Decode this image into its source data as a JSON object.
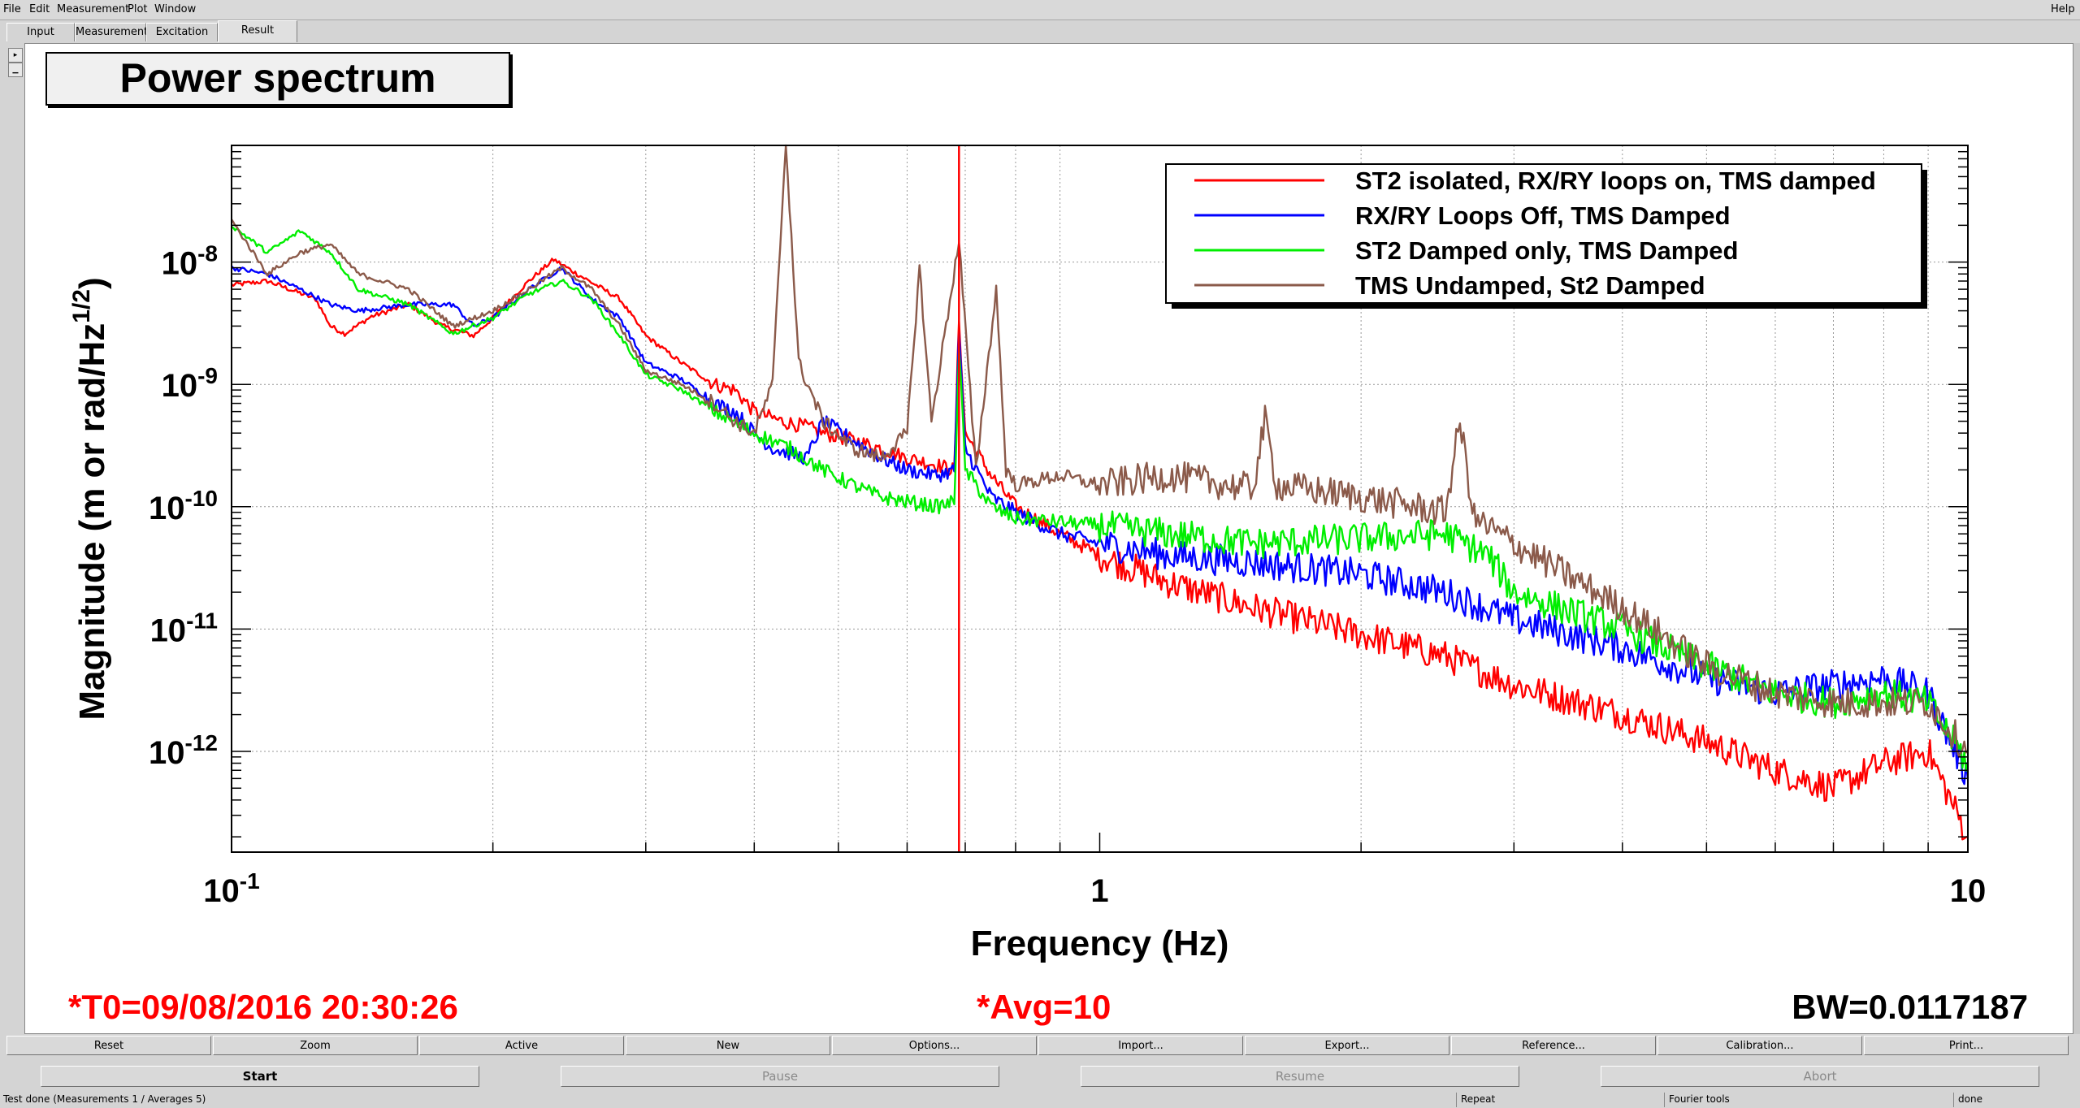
{
  "menu": [
    "File",
    "Edit",
    "Measurement",
    "Plot",
    "Window"
  ],
  "help": "Help",
  "tabs": [
    "Input",
    "Measurement",
    "Excitation",
    "Result"
  ],
  "plot_title": "Power spectrum",
  "footer": {
    "t0": "*T0=09/08/2016 20:30:26",
    "avg": "*Avg=10",
    "bw": "BW=0.0117187"
  },
  "toolbar": [
    "Reset",
    "Zoom",
    "Active",
    "New",
    "Options...",
    "Import...",
    "Export...",
    "Reference...",
    "Calibration...",
    "Print..."
  ],
  "controls": [
    "Start",
    "Pause",
    "Resume",
    "Abort"
  ],
  "status": {
    "message": "Test done (Measurements 1 / Averages 5)",
    "repeat": "Repeat",
    "tool": "Fourier tools",
    "state": "done"
  },
  "colors": {
    "red": "#ff0000",
    "blue": "#0000ff",
    "green": "#00ee00",
    "brown": "#8b5a4a"
  },
  "chart_data": {
    "type": "line",
    "title": "Power spectrum",
    "xlabel": "Frequency (Hz)",
    "ylabel": "Magnitude (m or rad/Hz^1/2)",
    "x_scale": "log",
    "y_scale": "log",
    "xlim": [
      0.1,
      10
    ],
    "ylim": [
      1.5e-13,
      9e-08
    ],
    "x_ticks": [
      {
        "value": 0.1,
        "base": "10",
        "exp": "-1"
      },
      {
        "value": 1,
        "base": "1",
        "exp": ""
      },
      {
        "value": 10,
        "base": "10",
        "exp": ""
      }
    ],
    "y_ticks": [
      {
        "value": 1e-08,
        "exp": "-8"
      },
      {
        "value": 1e-09,
        "exp": "-9"
      },
      {
        "value": 1e-10,
        "exp": "-10"
      },
      {
        "value": 1e-11,
        "exp": "-11"
      },
      {
        "value": 1e-12,
        "exp": "-12"
      }
    ],
    "grid": true,
    "legend_position": "top-right",
    "cursor_frequency": 0.6885,
    "series": [
      {
        "name": "ST2 isolated, RX/RY loops on, TMS damped",
        "color": "#ff0000",
        "points": [
          [
            0.1,
            6.5e-09
          ],
          [
            0.11,
            7e-09
          ],
          [
            0.125,
            5e-09
          ],
          [
            0.13,
            3e-09
          ],
          [
            0.135,
            2.6e-09
          ],
          [
            0.145,
            3.6e-09
          ],
          [
            0.16,
            4.5e-09
          ],
          [
            0.175,
            3e-09
          ],
          [
            0.19,
            2.5e-09
          ],
          [
            0.2,
            3.5e-09
          ],
          [
            0.22,
            7e-09
          ],
          [
            0.235,
            1.05e-08
          ],
          [
            0.25,
            8e-09
          ],
          [
            0.28,
            5e-09
          ],
          [
            0.3,
            2.5e-09
          ],
          [
            0.33,
            1.5e-09
          ],
          [
            0.36,
            1e-09
          ],
          [
            0.38,
            9e-10
          ],
          [
            0.4,
            6e-10
          ],
          [
            0.43,
            5e-10
          ],
          [
            0.46,
            4.5e-10
          ],
          [
            0.48,
            4e-10
          ],
          [
            0.52,
            3.5e-10
          ],
          [
            0.56,
            3e-10
          ],
          [
            0.6,
            2.5e-10
          ],
          [
            0.65,
            2.2e-10
          ],
          [
            0.68,
            2e-10
          ],
          [
            0.6885,
            3.5e-09
          ],
          [
            0.7,
            4e-10
          ],
          [
            0.75,
            1.8e-10
          ],
          [
            0.8,
            1e-10
          ],
          [
            0.9,
            6e-11
          ],
          [
            1,
            4e-11
          ],
          [
            1.2,
            2.4e-11
          ],
          [
            1.5,
            1.5e-11
          ],
          [
            2,
            9e-12
          ],
          [
            2.5,
            6e-12
          ],
          [
            3,
            3.5e-12
          ],
          [
            4,
            2e-12
          ],
          [
            5,
            1.2e-12
          ],
          [
            6,
            7e-13
          ],
          [
            7,
            5e-13
          ],
          [
            8,
            8e-13
          ],
          [
            9,
            1e-12
          ],
          [
            10,
            2e-13
          ]
        ]
      },
      {
        "name": "RX/RY Loops Off, TMS Damped",
        "color": "#0000ff",
        "points": [
          [
            0.1,
            9e-09
          ],
          [
            0.11,
            8e-09
          ],
          [
            0.12,
            6e-09
          ],
          [
            0.13,
            4.5e-09
          ],
          [
            0.14,
            4e-09
          ],
          [
            0.16,
            4.5e-09
          ],
          [
            0.18,
            4.5e-09
          ],
          [
            0.19,
            3e-09
          ],
          [
            0.2,
            3.5e-09
          ],
          [
            0.22,
            6e-09
          ],
          [
            0.24,
            9e-09
          ],
          [
            0.26,
            5e-09
          ],
          [
            0.28,
            3.5e-09
          ],
          [
            0.3,
            1.5e-09
          ],
          [
            0.33,
            1.1e-09
          ],
          [
            0.36,
            7e-10
          ],
          [
            0.38,
            6e-10
          ],
          [
            0.4,
            4e-10
          ],
          [
            0.42,
            3e-10
          ],
          [
            0.46,
            2.5e-10
          ],
          [
            0.48,
            5e-10
          ],
          [
            0.52,
            3.5e-10
          ],
          [
            0.56,
            2.5e-10
          ],
          [
            0.6,
            2e-10
          ],
          [
            0.65,
            1.8e-10
          ],
          [
            0.68,
            2e-10
          ],
          [
            0.6885,
            2.5e-09
          ],
          [
            0.7,
            3e-10
          ],
          [
            0.75,
            1.2e-10
          ],
          [
            0.8,
            9e-11
          ],
          [
            0.9,
            6e-11
          ],
          [
            1,
            5e-11
          ],
          [
            1.2,
            4e-11
          ],
          [
            1.5,
            3.5e-11
          ],
          [
            2,
            2.8e-11
          ],
          [
            2.5,
            2e-11
          ],
          [
            3,
            1.2e-11
          ],
          [
            4,
            7e-12
          ],
          [
            5,
            4e-12
          ],
          [
            6,
            3e-12
          ],
          [
            7,
            3.5e-12
          ],
          [
            8,
            4e-12
          ],
          [
            9,
            3e-12
          ],
          [
            10,
            6e-13
          ]
        ]
      },
      {
        "name": "ST2 Damped only, TMS Damped",
        "color": "#00ee00",
        "points": [
          [
            0.1,
            2e-08
          ],
          [
            0.11,
            1.2e-08
          ],
          [
            0.12,
            1.8e-08
          ],
          [
            0.13,
            1.2e-08
          ],
          [
            0.14,
            6e-09
          ],
          [
            0.16,
            4.5e-09
          ],
          [
            0.18,
            2.6e-09
          ],
          [
            0.2,
            3.5e-09
          ],
          [
            0.22,
            5.5e-09
          ],
          [
            0.24,
            7e-09
          ],
          [
            0.26,
            5e-09
          ],
          [
            0.28,
            2.5e-09
          ],
          [
            0.3,
            1.2e-09
          ],
          [
            0.33,
            9e-10
          ],
          [
            0.36,
            6e-10
          ],
          [
            0.4,
            4e-10
          ],
          [
            0.44,
            3e-10
          ],
          [
            0.48,
            2e-10
          ],
          [
            0.52,
            1.5e-10
          ],
          [
            0.56,
            1.2e-10
          ],
          [
            0.6,
            1.1e-10
          ],
          [
            0.65,
            1e-10
          ],
          [
            0.68,
            1.1e-10
          ],
          [
            0.6885,
            2e-09
          ],
          [
            0.7,
            2e-10
          ],
          [
            0.75,
            1e-10
          ],
          [
            0.8,
            8e-11
          ],
          [
            0.9,
            7.5e-11
          ],
          [
            1,
            7e-11
          ],
          [
            1.2,
            6e-11
          ],
          [
            1.5,
            5e-11
          ],
          [
            2,
            5.5e-11
          ],
          [
            2.5,
            6e-11
          ],
          [
            2.8,
            4e-11
          ],
          [
            3,
            2e-11
          ],
          [
            4,
            1e-11
          ],
          [
            5,
            5e-12
          ],
          [
            6,
            3e-12
          ],
          [
            7,
            2.5e-12
          ],
          [
            8,
            3e-12
          ],
          [
            9,
            2.5e-12
          ],
          [
            10,
            8e-13
          ]
        ]
      },
      {
        "name": "TMS Undamped, St2 Damped",
        "color": "#8b5a4a",
        "points": [
          [
            0.1,
            2.2e-08
          ],
          [
            0.11,
            8e-09
          ],
          [
            0.12,
            1.2e-08
          ],
          [
            0.13,
            1.4e-08
          ],
          [
            0.14,
            8e-09
          ],
          [
            0.16,
            6e-09
          ],
          [
            0.18,
            3e-09
          ],
          [
            0.2,
            4e-09
          ],
          [
            0.22,
            6e-09
          ],
          [
            0.24,
            9e-09
          ],
          [
            0.26,
            6e-09
          ],
          [
            0.28,
            3e-09
          ],
          [
            0.3,
            1.3e-09
          ],
          [
            0.33,
            1e-09
          ],
          [
            0.36,
            7e-10
          ],
          [
            0.38,
            5e-10
          ],
          [
            0.4,
            4e-10
          ],
          [
            0.42,
            1e-09
          ],
          [
            0.435,
            1e-07
          ],
          [
            0.45,
            1.5e-09
          ],
          [
            0.48,
            5e-10
          ],
          [
            0.52,
            3e-10
          ],
          [
            0.56,
            2.5e-10
          ],
          [
            0.6,
            4e-10
          ],
          [
            0.62,
            9e-09
          ],
          [
            0.64,
            5e-10
          ],
          [
            0.6885,
            1.5e-08
          ],
          [
            0.72,
            2e-10
          ],
          [
            0.76,
            6e-09
          ],
          [
            0.78,
            2e-10
          ],
          [
            0.8,
            1.5e-10
          ],
          [
            0.9,
            1.8e-10
          ],
          [
            1,
            1.5e-10
          ],
          [
            1.2,
            1.8e-10
          ],
          [
            1.5,
            1.4e-10
          ],
          [
            1.55,
            5e-10
          ],
          [
            1.6,
            1.5e-10
          ],
          [
            2,
            1.2e-10
          ],
          [
            2.5,
            9e-11
          ],
          [
            2.6,
            5e-10
          ],
          [
            2.7,
            8e-11
          ],
          [
            3,
            5e-11
          ],
          [
            4,
            1.5e-11
          ],
          [
            5,
            5e-12
          ],
          [
            6,
            3e-12
          ],
          [
            7,
            2.5e-12
          ],
          [
            8,
            2.5e-12
          ],
          [
            9,
            2.5e-12
          ],
          [
            10,
            1e-12
          ]
        ]
      }
    ]
  }
}
